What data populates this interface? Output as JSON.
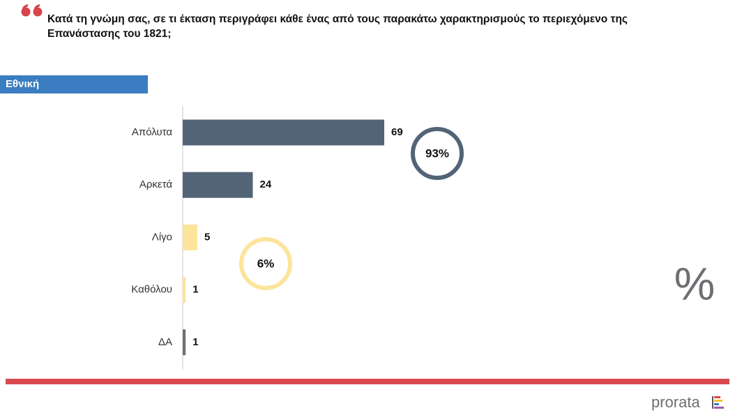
{
  "chart_data": {
    "type": "bar",
    "orientation": "horizontal",
    "title": "Κατά τη γνώμη σας, σε τι έκταση περιγράφει κάθε ένας από τους παρακάτω χαρακτηρισμούς το περιεχόμενο της Επανάστασης του 1821;",
    "section_label": "Εθνική",
    "categories": [
      "Απόλυτα",
      "Αρκετά",
      "Λίγο",
      "Καθόλου",
      "ΔΑ"
    ],
    "values": [
      69,
      24,
      5,
      1,
      1
    ],
    "colors": [
      "#536477",
      "#536477",
      "#fde49c",
      "#fde49c",
      "#6d6f72"
    ],
    "groups": [
      {
        "value": 93,
        "label": "93%",
        "color": "#536477"
      },
      {
        "value": 6,
        "label": "6%",
        "color": "#fde49c"
      }
    ],
    "unit_symbol": "%",
    "brand": "prorata"
  }
}
